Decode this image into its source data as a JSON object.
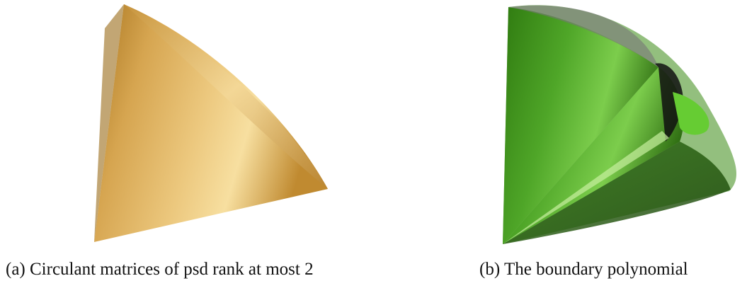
{
  "figures": [
    {
      "caption": "(a) Circulant matrices of psd rank at most 2"
    },
    {
      "caption": "(b) The boundary polynomial"
    }
  ]
}
